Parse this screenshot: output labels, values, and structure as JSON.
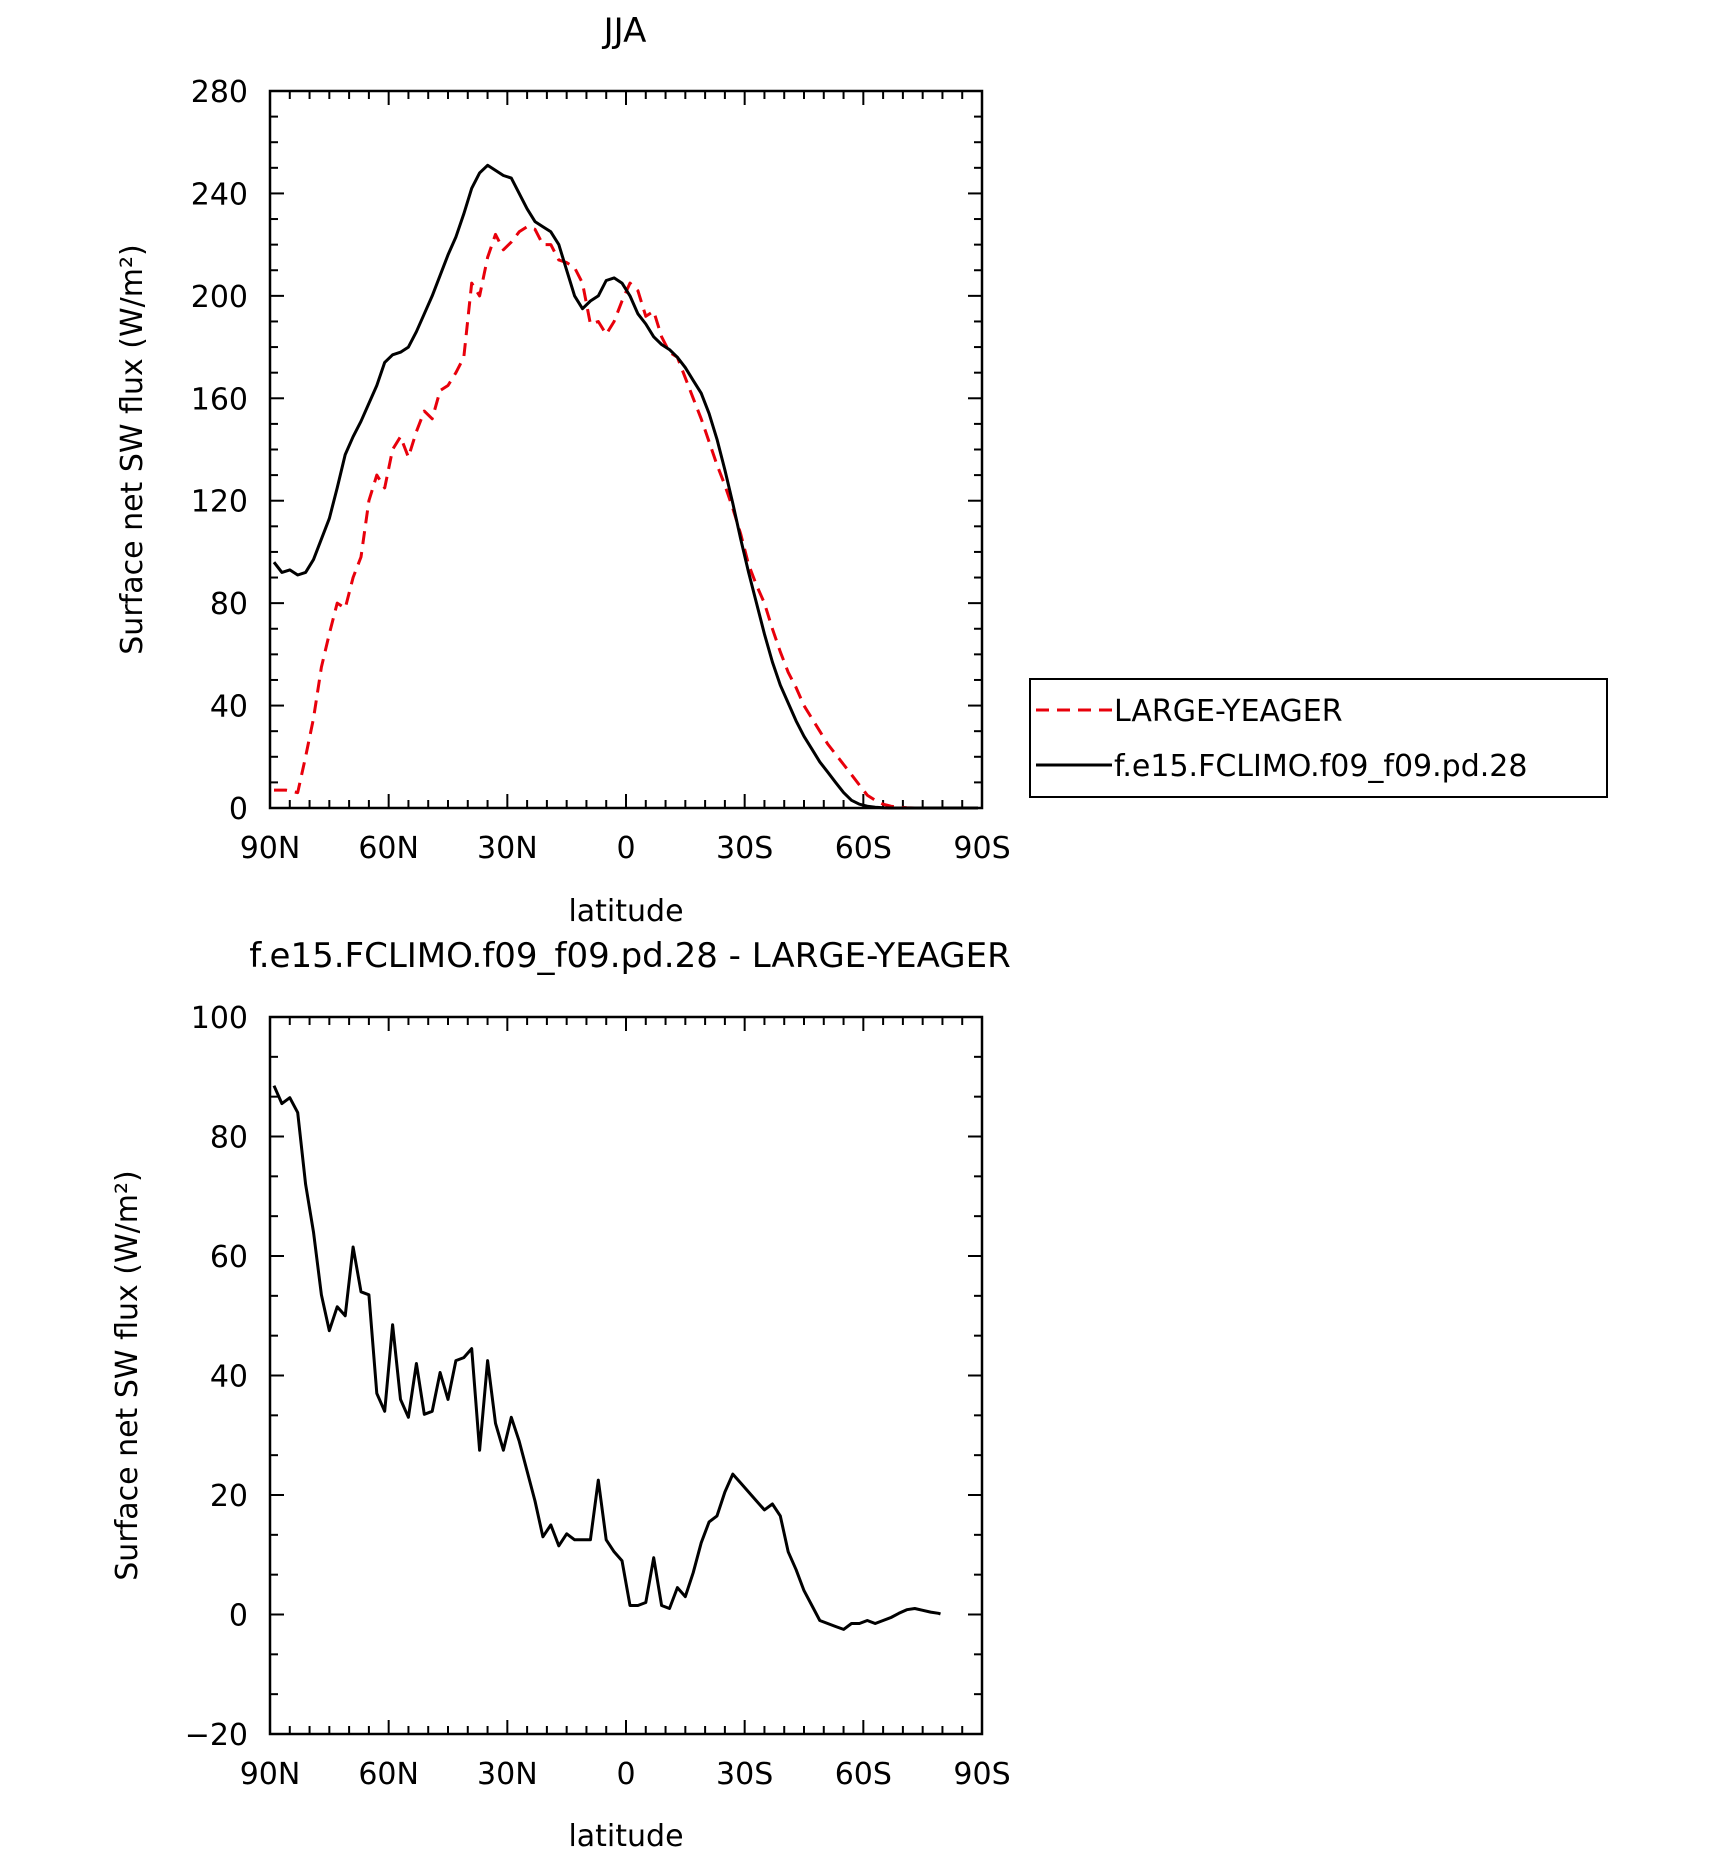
{
  "chart_data": [
    {
      "type": "line",
      "title": "JJA",
      "xlabel": "latitude",
      "ylabel": "Surface net SW flux (W/m²)",
      "xlim": [
        90,
        -90
      ],
      "ylim": [
        0,
        280
      ],
      "xticks": [
        90,
        60,
        30,
        0,
        -30,
        -60,
        -90
      ],
      "xtick_labels": [
        "90N",
        "60N",
        "30N",
        "0",
        "30S",
        "60S",
        "90S"
      ],
      "yticks": [
        0,
        40,
        80,
        120,
        160,
        200,
        240,
        280
      ],
      "ytick_labels": [
        "0",
        "40",
        "80",
        "120",
        "160",
        "200",
        "240",
        "280"
      ],
      "grid": false,
      "legend_position": "right",
      "series": [
        {
          "name": "LARGE-YEAGER",
          "color": "#e8000b",
          "dash": "dashed",
          "x": [
            89,
            86,
            83,
            81,
            79,
            77,
            75,
            73,
            71,
            69,
            67,
            65,
            63,
            61,
            59,
            57,
            55,
            53,
            51,
            49,
            47,
            45,
            43,
            41,
            39,
            37,
            35,
            33,
            31,
            29,
            27,
            25,
            23,
            21,
            19,
            17,
            15,
            13,
            11,
            9,
            7,
            5,
            3,
            1,
            -1,
            -3,
            -5,
            -7,
            -9,
            -11,
            -13,
            -15,
            -17,
            -19,
            -21,
            -23,
            -25,
            -27,
            -29,
            -31,
            -33,
            -35,
            -37,
            -39,
            -41,
            -43,
            -45,
            -47,
            -49,
            -51,
            -53,
            -55,
            -57,
            -59,
            -61,
            -63,
            -65,
            -67,
            -69,
            -71,
            -73,
            -75,
            -77,
            -79,
            -81,
            -83,
            -85,
            -87,
            -89
          ],
          "y": [
            7,
            7,
            6,
            20,
            35,
            55,
            68,
            80,
            78,
            90,
            98,
            120,
            130,
            125,
            140,
            145,
            137,
            147,
            155,
            152,
            163,
            165,
            170,
            176,
            205,
            200,
            215,
            224,
            218,
            221,
            225,
            227,
            226,
            220,
            220,
            214,
            213,
            211,
            205,
            189,
            190,
            185,
            190,
            198,
            205,
            202,
            192,
            194,
            184,
            178,
            176,
            168,
            160,
            152,
            143,
            134,
            126,
            117,
            107,
            95,
            87,
            80,
            70,
            61,
            53,
            47,
            40,
            35,
            30,
            25,
            21,
            17,
            13,
            9,
            5,
            3,
            1.5,
            0.7,
            0.3,
            0.1,
            0,
            0,
            0,
            0,
            0,
            0,
            0,
            0,
            0
          ]
        },
        {
          "name": "f.e15.FCLIMO.f09_f09.pd.28",
          "color": "#000000",
          "dash": "solid",
          "x": [
            89,
            87,
            85,
            83,
            81,
            79,
            77,
            75,
            73,
            71,
            69,
            67,
            65,
            63,
            61,
            59,
            57,
            55,
            53,
            51,
            49,
            47,
            45,
            43,
            41,
            39,
            37,
            35,
            33,
            31,
            29,
            27,
            25,
            23,
            21,
            19,
            17,
            15,
            13,
            11,
            9,
            7,
            5,
            3,
            1,
            -1,
            -3,
            -5,
            -7,
            -9,
            -11,
            -13,
            -15,
            -17,
            -19,
            -21,
            -23,
            -25,
            -27,
            -29,
            -31,
            -33,
            -35,
            -37,
            -39,
            -41,
            -43,
            -45,
            -47,
            -49,
            -51,
            -53,
            -55,
            -57,
            -59,
            -61,
            -63,
            -65,
            -67,
            -69,
            -71,
            -73,
            -75,
            -77,
            -79,
            -81,
            -83,
            -85,
            -87,
            -89
          ],
          "y": [
            96,
            92,
            93,
            91,
            92,
            97,
            105,
            113,
            125,
            138,
            145,
            151,
            158,
            165,
            174,
            177,
            178,
            180,
            186,
            193,
            200,
            208,
            216,
            223,
            232,
            242,
            248,
            251,
            249,
            247,
            246,
            240,
            234,
            229,
            227,
            225,
            220,
            210,
            200,
            195,
            198,
            200,
            206,
            207,
            205,
            200,
            193,
            189,
            184,
            181,
            179,
            176,
            172,
            167,
            162,
            154,
            144,
            132,
            119,
            105,
            92,
            80,
            68,
            57,
            48,
            41,
            34,
            28,
            23,
            18,
            14,
            10,
            6,
            3,
            1.5,
            0.7,
            0.3,
            0.1,
            0,
            0,
            0,
            0,
            0,
            0,
            0,
            0,
            0,
            0,
            0,
            0
          ]
        }
      ]
    },
    {
      "type": "line",
      "title": "f.e15.FCLIMO.f09_f09.pd.28 - LARGE-YEAGER",
      "xlabel": "latitude",
      "ylabel": "Surface net SW flux (W/m²)",
      "xlim": [
        90,
        -90
      ],
      "ylim": [
        -20,
        100
      ],
      "xticks": [
        90,
        60,
        30,
        0,
        -30,
        -60,
        -90
      ],
      "xtick_labels": [
        "90N",
        "60N",
        "30N",
        "0",
        "30S",
        "60S",
        "90S"
      ],
      "yticks": [
        -20,
        0,
        20,
        40,
        60,
        80,
        100
      ],
      "ytick_labels": [
        "−20",
        "0",
        "20",
        "40",
        "60",
        "80",
        "100"
      ],
      "grid": false,
      "series": [
        {
          "color": "#000000",
          "dash": "solid",
          "x": [
            89,
            87,
            85,
            83,
            81,
            79,
            77,
            75,
            73,
            71,
            69,
            67,
            65,
            63,
            61,
            59,
            57,
            55,
            53,
            51,
            49,
            47,
            45,
            43,
            41,
            39,
            37,
            35,
            33,
            31,
            29,
            27,
            25,
            23,
            21,
            19,
            17,
            15,
            13,
            11,
            9,
            7,
            5,
            3,
            1,
            -1,
            -3,
            -5,
            -7,
            -9,
            -11,
            -13,
            -15,
            -17,
            -19,
            -21,
            -23,
            -25,
            -27,
            -29,
            -31,
            -33,
            -35,
            -37,
            -39,
            -41,
            -43,
            -45,
            -47,
            -49,
            -51,
            -53,
            -55,
            -57,
            -59,
            -61,
            -63,
            -65,
            -67,
            -69,
            -71,
            -73,
            -75,
            -77,
            -79,
            -79.5
          ],
          "y": [
            88.5,
            85.5,
            86.5,
            84,
            72,
            64,
            53.5,
            47.5,
            51.5,
            50,
            61.5,
            54,
            53.5,
            37,
            34,
            48.5,
            36,
            33,
            42,
            33.5,
            34,
            40.5,
            36,
            42.5,
            43,
            44.5,
            27.5,
            42.5,
            32,
            27.5,
            33,
            29,
            24,
            19,
            13,
            15,
            11.5,
            13.5,
            12.5,
            12.5,
            12.5,
            22.5,
            12.5,
            10.5,
            9,
            1.5,
            1.5,
            2,
            9.5,
            1.5,
            1,
            4.5,
            3,
            7,
            12,
            15.5,
            16.5,
            20.5,
            23.5,
            22,
            20.5,
            19,
            17.5,
            18.5,
            16.5,
            10.5,
            7.5,
            4,
            1.5,
            -1,
            -1.5,
            -2,
            -2.5,
            -1.5,
            -1.5,
            -1,
            -1.5,
            -1,
            -0.5,
            0.2,
            0.8,
            1,
            0.7,
            0.4,
            0.2,
            0.1
          ]
        }
      ]
    }
  ]
}
